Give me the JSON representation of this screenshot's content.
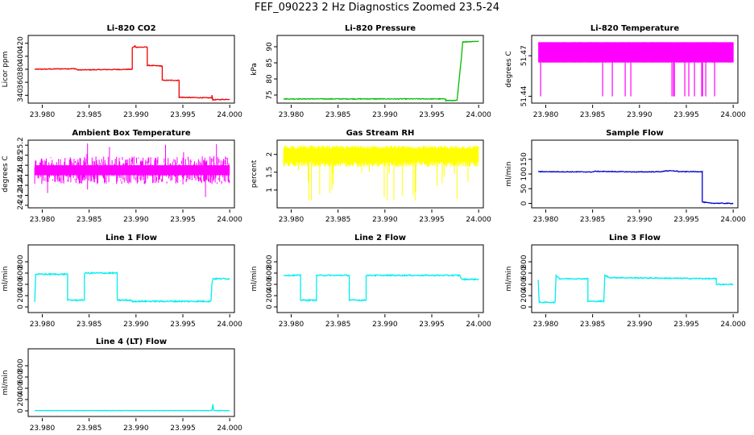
{
  "figure": {
    "title": "FEF_090223  2 Hz Diagnostics Zoomed 23.5-24"
  },
  "chart_data": [
    {
      "type": "line",
      "title": "Li-820 CO2",
      "ylabel": "Licor ppm",
      "color": "#ee0000",
      "xlim": [
        23.9785,
        24.0005
      ],
      "xticks": [
        "23.980",
        "23.985",
        "23.990",
        "23.995",
        "24.000"
      ],
      "ylim": [
        328,
        432
      ],
      "yticks": [
        340,
        360,
        380,
        400,
        420
      ],
      "noise": 0.6,
      "points": [
        [
          23.9792,
          380
        ],
        [
          23.9835,
          381
        ],
        [
          23.9838,
          379
        ],
        [
          23.9896,
          380
        ],
        [
          23.9896,
          413
        ],
        [
          23.9899,
          416
        ],
        [
          23.9899,
          414
        ],
        [
          23.9912,
          414
        ],
        [
          23.9912,
          386
        ],
        [
          23.9928,
          385
        ],
        [
          23.9928,
          363
        ],
        [
          23.9946,
          363
        ],
        [
          23.9946,
          337
        ],
        [
          23.9981,
          336
        ],
        [
          23.9981,
          340
        ],
        [
          23.9982,
          333
        ],
        [
          24.0,
          334
        ]
      ]
    },
    {
      "type": "line",
      "title": "Li-820 Pressure",
      "ylabel": "kPa",
      "color": "#00bb00",
      "xlim": [
        23.9785,
        24.0005
      ],
      "xticks": [
        "23.980",
        "23.985",
        "23.990",
        "23.995",
        "24.000"
      ],
      "ylim": [
        72.5,
        93.5
      ],
      "yticks": [
        75,
        80,
        85,
        90
      ],
      "noise": 0.12,
      "points": [
        [
          23.9792,
          73.8
        ],
        [
          23.993,
          73.8
        ],
        [
          23.9965,
          73.8
        ],
        [
          23.9965,
          73.3
        ],
        [
          23.9977,
          73.3
        ],
        [
          23.998,
          82
        ],
        [
          23.9982,
          88
        ],
        [
          23.9983,
          91.5
        ],
        [
          24.0,
          91.7
        ]
      ]
    },
    {
      "type": "line",
      "title": "Li-820 Temperature",
      "ylabel": "degrees C",
      "color": "#ff00ff",
      "xlim": [
        23.9785,
        24.0005
      ],
      "xticks": [
        "23.980",
        "23.985",
        "23.990",
        "23.995",
        "24.000"
      ],
      "ylim": [
        51.435,
        51.485
      ],
      "yticks": [
        51.44,
        51.47
      ],
      "noise": 0,
      "points": []
    },
    {
      "type": "line",
      "title": "Ambient Box Temperature",
      "ylabel": "degrees C",
      "color": "#ff00ff",
      "xlim": [
        23.9785,
        24.0005
      ],
      "xticks": [
        "23.980",
        "23.985",
        "23.990",
        "23.995",
        "24.000"
      ],
      "ylim": [
        23.95,
        25.3
      ],
      "yticks": [
        24.0,
        24.2,
        24.4,
        24.6,
        24.8,
        25.0,
        25.2
      ],
      "noise": 0,
      "points": []
    },
    {
      "type": "line",
      "title": "Gas Stream RH",
      "ylabel": "percent",
      "color": "#ffff00",
      "xlim": [
        23.9785,
        24.0005
      ],
      "xticks": [
        "23.980",
        "23.985",
        "23.990",
        "23.995",
        "24.000"
      ],
      "ylim": [
        0.5,
        2.4
      ],
      "yticks": [
        1.0,
        1.5,
        2.0
      ],
      "noise": 0,
      "points": []
    },
    {
      "type": "line",
      "title": "Sample Flow",
      "ylabel": "ml/min",
      "color": "#0000cc",
      "xlim": [
        23.9785,
        24.0005
      ],
      "xticks": [
        "23.980",
        "23.985",
        "23.990",
        "23.995",
        "24.000"
      ],
      "ylim": [
        -15,
        215
      ],
      "yticks": [
        0,
        50,
        100,
        150
      ],
      "noise": 1.2,
      "points": [
        [
          23.9792,
          108
        ],
        [
          23.985,
          107
        ],
        [
          23.9852,
          109
        ],
        [
          23.99,
          107
        ],
        [
          23.9925,
          108
        ],
        [
          23.9927,
          111
        ],
        [
          23.994,
          110
        ],
        [
          23.9942,
          108
        ],
        [
          23.9967,
          108
        ],
        [
          23.9967,
          5
        ],
        [
          23.9975,
          1
        ],
        [
          24.0,
          0
        ]
      ]
    },
    {
      "type": "line",
      "title": "Line 1 Flow",
      "ylabel": "ml/min",
      "color": "#00eeee",
      "xlim": [
        23.9785,
        24.0005
      ],
      "xticks": [
        "23.980",
        "23.985",
        "23.990",
        "23.995",
        "24.000"
      ],
      "ylim": [
        -100,
        1100
      ],
      "yticks": [
        0,
        200,
        400,
        600,
        800
      ],
      "noise": 12,
      "points": [
        [
          23.9792,
          100
        ],
        [
          23.9793,
          580
        ],
        [
          23.9827,
          580
        ],
        [
          23.9827,
          120
        ],
        [
          23.9845,
          120
        ],
        [
          23.9845,
          600
        ],
        [
          23.988,
          600
        ],
        [
          23.988,
          120
        ],
        [
          23.9895,
          120
        ],
        [
          23.9895,
          100
        ],
        [
          23.998,
          100
        ],
        [
          23.9981,
          420
        ],
        [
          23.9982,
          500
        ],
        [
          24.0,
          500
        ]
      ]
    },
    {
      "type": "line",
      "title": "Line 2 Flow",
      "ylabel": "ml/min",
      "color": "#00eeee",
      "xlim": [
        23.9785,
        24.0005
      ],
      "xticks": [
        "23.980",
        "23.985",
        "23.990",
        "23.995",
        "24.000"
      ],
      "ylim": [
        -100,
        1100
      ],
      "yticks": [
        0,
        200,
        400,
        600,
        800
      ],
      "noise": 10,
      "points": [
        [
          23.9792,
          560
        ],
        [
          23.981,
          560
        ],
        [
          23.981,
          120
        ],
        [
          23.9827,
          120
        ],
        [
          23.9827,
          560
        ],
        [
          23.9862,
          560
        ],
        [
          23.9862,
          120
        ],
        [
          23.988,
          120
        ],
        [
          23.988,
          560
        ],
        [
          23.998,
          560
        ],
        [
          23.9982,
          490
        ],
        [
          24.0,
          490
        ]
      ]
    },
    {
      "type": "line",
      "title": "Line 3 Flow",
      "ylabel": "ml/min",
      "color": "#00eeee",
      "xlim": [
        23.9785,
        24.0005
      ],
      "xticks": [
        "23.980",
        "23.985",
        "23.990",
        "23.995",
        "24.000"
      ],
      "ylim": [
        -100,
        1100
      ],
      "yticks": [
        0,
        200,
        400,
        600,
        800
      ],
      "noise": 10,
      "points": [
        [
          23.9792,
          480
        ],
        [
          23.9793,
          80
        ],
        [
          23.981,
          80
        ],
        [
          23.9811,
          560
        ],
        [
          23.9815,
          500
        ],
        [
          23.9845,
          500
        ],
        [
          23.9845,
          100
        ],
        [
          23.9862,
          100
        ],
        [
          23.9863,
          560
        ],
        [
          23.9868,
          520
        ],
        [
          23.9982,
          500
        ],
        [
          23.9982,
          400
        ],
        [
          24.0,
          400
        ]
      ]
    },
    {
      "type": "line",
      "title": "Line 4 (LT) Flow",
      "ylabel": "ml/min",
      "color": "#00eeee",
      "xlim": [
        23.9785,
        24.0005
      ],
      "xticks": [
        "23.980",
        "23.985",
        "23.990",
        "23.995",
        "24.000"
      ],
      "ylim": [
        -100,
        1100
      ],
      "yticks": [
        0,
        200,
        400,
        600,
        800
      ],
      "noise": 3,
      "points": [
        [
          23.9792,
          5
        ],
        [
          23.9981,
          5
        ],
        [
          23.9982,
          120
        ],
        [
          23.9983,
          5
        ],
        [
          24.0,
          5
        ]
      ]
    }
  ]
}
